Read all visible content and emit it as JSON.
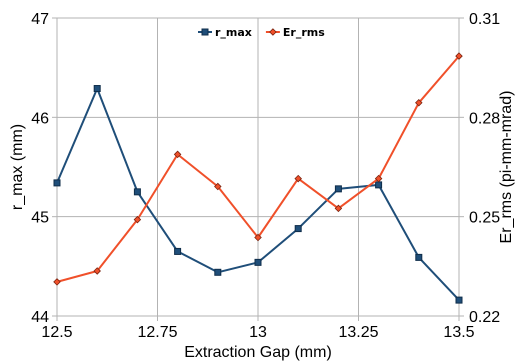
{
  "chart_data": {
    "type": "line",
    "title": "",
    "xlabel": "Extraction Gap (mm)",
    "ylabel": "r_max (mm)",
    "y2label": "Er_rms (pi-mm-mrad)",
    "xlim": [
      12.5,
      13.5
    ],
    "ylim": [
      44,
      47
    ],
    "y2lim": [
      0.22,
      0.31
    ],
    "x_ticks": [
      "12.5",
      "12.75",
      "13",
      "13.25",
      "13.5"
    ],
    "y_ticks": [
      "44",
      "45",
      "46",
      "47"
    ],
    "y2_ticks": [
      "0.22",
      "0.25",
      "0.28",
      "0.31"
    ],
    "grid": "vertical and horizontal major gridlines",
    "legend_position": "top-center",
    "x": [
      12.5,
      12.6,
      12.7,
      12.8,
      12.9,
      13.0,
      13.1,
      13.2,
      13.3,
      13.4,
      13.5
    ],
    "series": [
      {
        "name": "r_max",
        "axis": "left",
        "color": "#1f4e79",
        "marker": "square",
        "values": [
          45.34,
          46.29,
          45.25,
          44.65,
          44.44,
          44.54,
          44.88,
          45.28,
          45.32,
          44.59,
          44.16
        ]
      },
      {
        "name": "Er_rms",
        "axis": "right",
        "color": "#f0502a",
        "marker": "diamond",
        "values": [
          0.2303,
          0.2336,
          0.2491,
          0.2688,
          0.2591,
          0.2437,
          0.2615,
          0.2525,
          0.2615,
          0.2844,
          0.2985
        ]
      }
    ]
  }
}
